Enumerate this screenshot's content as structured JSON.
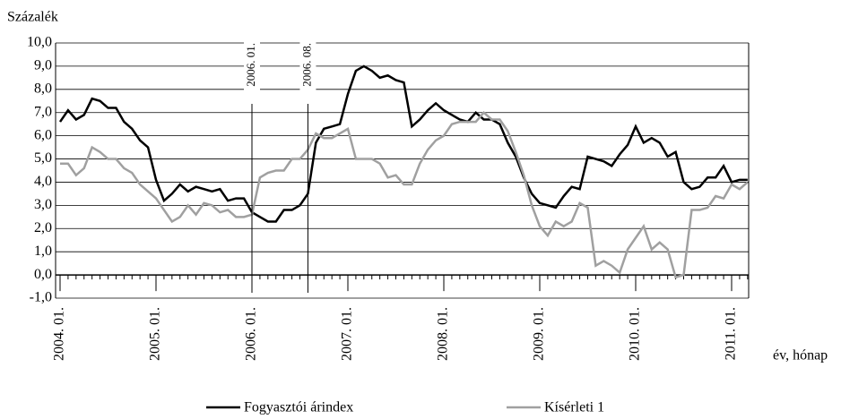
{
  "chart_data": {
    "type": "line",
    "title": "Százalék",
    "x_label": "év, hónap",
    "categories": [
      "2004. 01.",
      null,
      null,
      null,
      null,
      null,
      null,
      null,
      null,
      null,
      null,
      null,
      "2005. 01.",
      null,
      null,
      null,
      null,
      null,
      null,
      null,
      null,
      null,
      null,
      null,
      "2006. 01.",
      null,
      null,
      null,
      null,
      null,
      null,
      null,
      null,
      null,
      null,
      null,
      "2007. 01.",
      null,
      null,
      null,
      null,
      null,
      null,
      null,
      null,
      null,
      null,
      null,
      "2008. 01.",
      null,
      null,
      null,
      null,
      null,
      null,
      null,
      null,
      null,
      null,
      null,
      "2009. 01.",
      null,
      null,
      null,
      null,
      null,
      null,
      null,
      null,
      null,
      null,
      null,
      "2010. 01.",
      null,
      null,
      null,
      null,
      null,
      null,
      null,
      null,
      null,
      null,
      null,
      "2011. 01.",
      null,
      null
    ],
    "series": [
      {
        "name": "Fogyasztói árindex",
        "color": "#000000",
        "values": [
          6.6,
          7.1,
          6.7,
          6.9,
          7.6,
          7.5,
          7.2,
          7.2,
          6.6,
          6.3,
          5.8,
          5.5,
          4.1,
          3.2,
          3.5,
          3.9,
          3.6,
          3.8,
          3.7,
          3.6,
          3.7,
          3.2,
          3.3,
          3.3,
          2.7,
          2.5,
          2.3,
          2.3,
          2.8,
          2.8,
          3.0,
          3.5,
          5.7,
          6.3,
          6.4,
          6.5,
          7.8,
          8.8,
          9.0,
          8.8,
          8.5,
          8.6,
          8.4,
          8.3,
          6.4,
          6.7,
          7.1,
          7.4,
          7.1,
          6.9,
          6.7,
          6.6,
          7.0,
          6.7,
          6.7,
          6.5,
          5.7,
          5.1,
          4.2,
          3.5,
          3.1,
          3.0,
          2.9,
          3.4,
          3.8,
          3.7,
          5.1,
          5.0,
          4.9,
          4.7,
          5.2,
          5.6,
          6.4,
          5.7,
          5.9,
          5.7,
          5.1,
          5.3,
          4.0,
          3.7,
          3.8,
          4.2,
          4.2,
          4.7,
          4.0,
          4.1,
          4.1
        ]
      },
      {
        "name": "Kísérleti 1",
        "color": "#a0a0a0",
        "values": [
          4.8,
          4.8,
          4.3,
          4.6,
          5.5,
          5.3,
          5.0,
          5.0,
          4.6,
          4.4,
          3.9,
          3.6,
          3.3,
          2.8,
          2.3,
          2.5,
          3.0,
          2.6,
          3.1,
          3.0,
          2.7,
          2.8,
          2.5,
          2.5,
          2.6,
          4.2,
          4.4,
          4.5,
          4.5,
          5.0,
          5.0,
          5.4,
          6.1,
          5.9,
          5.9,
          6.1,
          6.3,
          5.0,
          5.0,
          5.0,
          4.8,
          4.2,
          4.3,
          3.9,
          3.9,
          4.8,
          5.4,
          5.8,
          6.0,
          6.5,
          6.6,
          6.6,
          6.6,
          7.0,
          6.7,
          6.7,
          6.2,
          5.3,
          4.3,
          3.0,
          2.1,
          1.7,
          2.3,
          2.1,
          2.3,
          3.1,
          2.9,
          0.4,
          0.6,
          0.4,
          0.1,
          1.1,
          1.6,
          2.1,
          1.1,
          1.4,
          1.1,
          -0.1,
          0.0,
          2.8,
          2.8,
          2.9,
          3.4,
          3.3,
          3.9,
          3.7,
          4.0
        ]
      }
    ],
    "annotations": [
      {
        "text": "2006. 01."
      },
      {
        "text": "2006. 08."
      }
    ],
    "ylim": [
      -1,
      10
    ],
    "yticks": [
      {
        "value": 10,
        "label": "10,0"
      },
      {
        "value": 9,
        "label": "9,0"
      },
      {
        "value": 8,
        "label": "8,0"
      },
      {
        "value": 7,
        "label": "7,0"
      },
      {
        "value": 6,
        "label": "6,0"
      },
      {
        "value": 5,
        "label": "5,0"
      },
      {
        "value": 4,
        "label": "4,0"
      },
      {
        "value": 3,
        "label": "3,0"
      },
      {
        "value": 2,
        "label": "2,0"
      },
      {
        "value": 1,
        "label": "1,0"
      },
      {
        "value": 0,
        "label": "0,0"
      },
      {
        "value": -1,
        "label": "-1,0"
      }
    ],
    "grid": true,
    "legend": "bottom"
  }
}
